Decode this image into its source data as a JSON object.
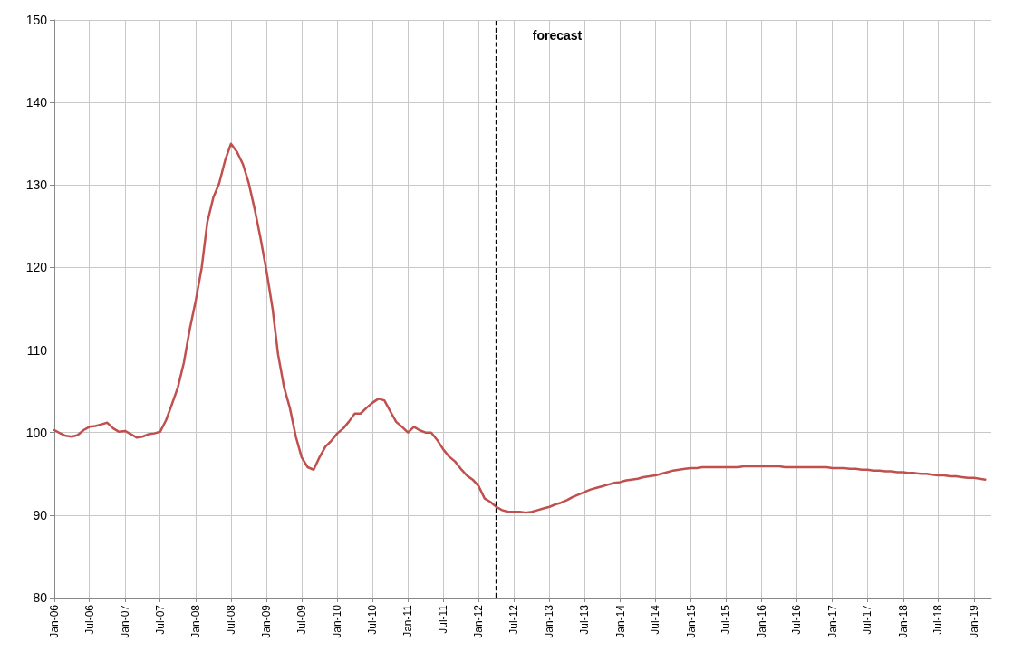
{
  "chart_data": {
    "type": "line",
    "x": [
      "2006-01",
      "2006-02",
      "2006-03",
      "2006-04",
      "2006-05",
      "2006-06",
      "2006-07",
      "2006-08",
      "2006-09",
      "2006-10",
      "2006-11",
      "2006-12",
      "2007-01",
      "2007-02",
      "2007-03",
      "2007-04",
      "2007-05",
      "2007-06",
      "2007-07",
      "2007-08",
      "2007-09",
      "2007-10",
      "2007-11",
      "2007-12",
      "2008-01",
      "2008-02",
      "2008-03",
      "2008-04",
      "2008-05",
      "2008-06",
      "2008-07",
      "2008-08",
      "2008-09",
      "2008-10",
      "2008-11",
      "2008-12",
      "2009-01",
      "2009-02",
      "2009-03",
      "2009-04",
      "2009-05",
      "2009-06",
      "2009-07",
      "2009-08",
      "2009-09",
      "2009-10",
      "2009-11",
      "2009-12",
      "2010-01",
      "2010-02",
      "2010-03",
      "2010-04",
      "2010-05",
      "2010-06",
      "2010-07",
      "2010-08",
      "2010-09",
      "2010-10",
      "2010-11",
      "2010-12",
      "2011-01",
      "2011-02",
      "2011-03",
      "2011-04",
      "2011-05",
      "2011-06",
      "2011-07",
      "2011-08",
      "2011-09",
      "2011-10",
      "2011-11",
      "2011-12",
      "2012-01",
      "2012-02",
      "2012-03",
      "2012-04",
      "2012-05",
      "2012-06",
      "2012-07",
      "2012-08",
      "2012-09",
      "2012-10",
      "2012-11",
      "2012-12",
      "2013-01",
      "2013-02",
      "2013-03",
      "2013-04",
      "2013-05",
      "2013-06",
      "2013-07",
      "2013-08",
      "2013-09",
      "2013-10",
      "2013-11",
      "2013-12",
      "2014-01",
      "2014-02",
      "2014-03",
      "2014-04",
      "2014-05",
      "2014-06",
      "2014-07",
      "2014-08",
      "2014-09",
      "2014-10",
      "2014-11",
      "2014-12",
      "2015-01",
      "2015-02",
      "2015-03",
      "2015-04",
      "2015-05",
      "2015-06",
      "2015-07",
      "2015-08",
      "2015-09",
      "2015-10",
      "2015-11",
      "2015-12",
      "2016-01",
      "2016-02",
      "2016-03",
      "2016-04",
      "2016-05",
      "2016-06",
      "2016-07",
      "2016-08",
      "2016-09",
      "2016-10",
      "2016-11",
      "2016-12",
      "2017-01",
      "2017-02",
      "2017-03",
      "2017-04",
      "2017-05",
      "2017-06",
      "2017-07",
      "2017-08",
      "2017-09",
      "2017-10",
      "2017-11",
      "2017-12",
      "2018-01",
      "2018-02",
      "2018-03",
      "2018-04",
      "2018-05",
      "2018-06",
      "2018-07",
      "2018-08",
      "2018-09",
      "2018-10",
      "2018-11",
      "2018-12",
      "2019-01",
      "2019-02",
      "2019-03"
    ],
    "series": [
      {
        "color": "#c0504d",
        "values": [
          100.3,
          99.9,
          99.6,
          99.5,
          99.7,
          100.3,
          100.7,
          100.8,
          101.0,
          101.2,
          100.5,
          100.1,
          100.2,
          99.8,
          99.4,
          99.5,
          99.8,
          99.9,
          100.1,
          101.5,
          103.5,
          105.5,
          108.5,
          112.5,
          116,
          120,
          125.5,
          128.5,
          130.2,
          133,
          135,
          134,
          132.5,
          130.2,
          127,
          123.5,
          119.5,
          115,
          109.5,
          105.5,
          103,
          99.5,
          97,
          95.8,
          95.5,
          97,
          98.3,
          99,
          99.9,
          100.5,
          101.3,
          102.3,
          102.3,
          103,
          103.6,
          104.1,
          103.9,
          102.6,
          101.3,
          100.7,
          100,
          100.7,
          100.3,
          100,
          100,
          99.1,
          98,
          97.1,
          96.5,
          95.6,
          94.8,
          94.3,
          93.5,
          92,
          91.6,
          91,
          90.6,
          90.4,
          90.4,
          90.4,
          90.3,
          90.4,
          90.6,
          90.8,
          91,
          91.3,
          91.5,
          91.8,
          92.2,
          92.5,
          92.8,
          93.1,
          93.3,
          93.5,
          93.7,
          93.9,
          94,
          94.2,
          94.3,
          94.4,
          94.6,
          94.7,
          94.8,
          95,
          95.2,
          95.4,
          95.5,
          95.6,
          95.7,
          95.7,
          95.8,
          95.8,
          95.8,
          95.8,
          95.8,
          95.8,
          95.8,
          95.9,
          95.9,
          95.9,
          95.9,
          95.9,
          95.9,
          95.9,
          95.8,
          95.8,
          95.8,
          95.8,
          95.8,
          95.8,
          95.8,
          95.8,
          95.7,
          95.7,
          95.7,
          95.6,
          95.6,
          95.5,
          95.5,
          95.4,
          95.4,
          95.3,
          95.3,
          95.2,
          95.2,
          95.1,
          95.1,
          95.0,
          95.0,
          94.9,
          94.8,
          94.8,
          94.7,
          94.7,
          94.6,
          94.5,
          94.5,
          94.4,
          94.3
        ]
      }
    ],
    "xlim": [
      "2006-01",
      "2019-04"
    ],
    "xticks": [
      {
        "value": "2006-01",
        "label": "Jan-06"
      },
      {
        "value": "2006-07",
        "label": "Jul-06"
      },
      {
        "value": "2007-01",
        "label": "Jan-07"
      },
      {
        "value": "2007-07",
        "label": "Jul-07"
      },
      {
        "value": "2008-01",
        "label": "Jan-08"
      },
      {
        "value": "2008-07",
        "label": "Jul-08"
      },
      {
        "value": "2009-01",
        "label": "Jan-09"
      },
      {
        "value": "2009-07",
        "label": "Jul-09"
      },
      {
        "value": "2010-01",
        "label": "Jan-10"
      },
      {
        "value": "2010-07",
        "label": "Jul-10"
      },
      {
        "value": "2011-01",
        "label": "Jan-11"
      },
      {
        "value": "2011-07",
        "label": "Jul-11"
      },
      {
        "value": "2012-01",
        "label": "Jan-12"
      },
      {
        "value": "2012-07",
        "label": "Jul-12"
      },
      {
        "value": "2013-01",
        "label": "Jan-13"
      },
      {
        "value": "2013-07",
        "label": "Jul-13"
      },
      {
        "value": "2014-01",
        "label": "Jan-14"
      },
      {
        "value": "2014-07",
        "label": "Jul-14"
      },
      {
        "value": "2015-01",
        "label": "Jan-15"
      },
      {
        "value": "2015-07",
        "label": "Jul-15"
      },
      {
        "value": "2016-01",
        "label": "Jan-16"
      },
      {
        "value": "2016-07",
        "label": "Jul-16"
      },
      {
        "value": "2017-01",
        "label": "Jan-17"
      },
      {
        "value": "2017-07",
        "label": "Jul-17"
      },
      {
        "value": "2018-01",
        "label": "Jan-18"
      },
      {
        "value": "2018-07",
        "label": "Jul-18"
      },
      {
        "value": "2019-01",
        "label": "Jan-19"
      }
    ],
    "ylim": [
      80,
      150
    ],
    "yticks": [
      80,
      90,
      100,
      110,
      120,
      130,
      140,
      150
    ],
    "grid": true,
    "marker": "none",
    "line_style": "solid",
    "ref_lines": [
      {
        "axis": "x",
        "value": "2012-04",
        "color": "#000000",
        "line_style": "dashed"
      }
    ],
    "annotations": [
      {
        "text": "forecast",
        "x": "2012-04",
        "y": 150
      }
    ]
  }
}
